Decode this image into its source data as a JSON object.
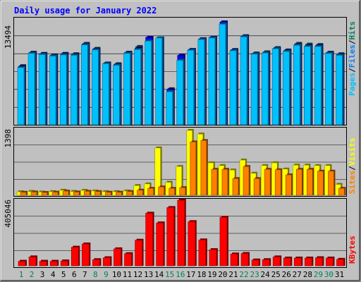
{
  "chart_data": [
    {
      "type": "bar",
      "title": "Daily usage for January 2022",
      "ylabel_parts": [
        {
          "text": "Pages",
          "color": "#00c0ff"
        },
        {
          "text": "Files",
          "color": "#0080ff"
        },
        {
          "text": "Hits",
          "color": "#00805f"
        }
      ],
      "y_max_label": "13494",
      "ylim": [
        0,
        13494
      ],
      "categories": [
        "1",
        "2",
        "3",
        "4",
        "5",
        "6",
        "7",
        "8",
        "9",
        "10",
        "11",
        "12",
        "13",
        "14",
        "15",
        "16",
        "17",
        "18",
        "19",
        "20",
        "21",
        "22",
        "23",
        "24",
        "25",
        "26",
        "27",
        "28",
        "29",
        "30",
        "31"
      ],
      "weekend_days": [
        "1",
        "2",
        "8",
        "9",
        "15",
        "16",
        "22",
        "23",
        "29",
        "30"
      ],
      "series": [
        {
          "name": "Hits",
          "color": "#00805f",
          "values": [
            7700,
            9450,
            9300,
            9100,
            9300,
            9250,
            10600,
            9950,
            8050,
            7950,
            9450,
            10200,
            11300,
            11300,
            4700,
            8950,
            9800,
            11200,
            11300,
            13400,
            9800,
            11600,
            9350,
            9500,
            10050,
            9750,
            10600,
            10500,
            10450,
            9450,
            9250
          ]
        },
        {
          "name": "Files",
          "color": "#0000ff",
          "values": [
            7600,
            9400,
            9250,
            9050,
            9250,
            9150,
            10500,
            9850,
            8000,
            7850,
            9400,
            10000,
            11400,
            11300,
            4600,
            9050,
            9800,
            11200,
            11400,
            13400,
            9750,
            11550,
            9250,
            9400,
            9950,
            9650,
            10450,
            10300,
            10300,
            9400,
            9150
          ]
        },
        {
          "name": "Pages",
          "color": "#00c0ff",
          "values": [
            7450,
            9300,
            9150,
            8950,
            9100,
            9050,
            10400,
            9750,
            7950,
            7750,
            9300,
            9800,
            10900,
            11300,
            4300,
            8400,
            9700,
            11100,
            11300,
            13100,
            9650,
            11450,
            9200,
            9350,
            9900,
            9550,
            10350,
            10200,
            10200,
            9300,
            9050
          ]
        }
      ]
    },
    {
      "type": "bar",
      "ylabel_parts": [
        {
          "text": "Sites",
          "color": "#ff8000"
        },
        {
          "text": "Visits",
          "color": "#ffff00"
        }
      ],
      "y_max_label": "1398",
      "ylim": [
        0,
        1398
      ],
      "categories": [
        "1",
        "2",
        "3",
        "4",
        "5",
        "6",
        "7",
        "8",
        "9",
        "10",
        "11",
        "12",
        "13",
        "14",
        "15",
        "16",
        "17",
        "18",
        "19",
        "20",
        "21",
        "22",
        "23",
        "24",
        "25",
        "26",
        "27",
        "28",
        "29",
        "30",
        "31"
      ],
      "series": [
        {
          "name": "Visits",
          "color": "#ffff00",
          "values": [
            75,
            82,
            70,
            78,
            108,
            82,
            105,
            92,
            78,
            78,
            92,
            210,
            245,
            1020,
            280,
            620,
            1398,
            1320,
            700,
            640,
            545,
            760,
            475,
            640,
            700,
            565,
            650,
            650,
            640,
            640,
            235
          ]
        },
        {
          "name": "Sites",
          "color": "#ff8000",
          "values": [
            64,
            70,
            60,
            66,
            90,
            70,
            85,
            80,
            65,
            65,
            80,
            110,
            150,
            180,
            150,
            165,
            1150,
            1180,
            560,
            560,
            360,
            620,
            360,
            560,
            550,
            440,
            560,
            560,
            520,
            520,
            150
          ]
        }
      ]
    },
    {
      "type": "bar",
      "ylabel_parts": [
        {
          "text": "KBytes",
          "color": "#ff0000"
        }
      ],
      "y_max_label": "405046",
      "ylim": [
        0,
        405046
      ],
      "categories": [
        "1",
        "2",
        "3",
        "4",
        "5",
        "6",
        "7",
        "8",
        "9",
        "10",
        "11",
        "12",
        "13",
        "14",
        "15",
        "16",
        "17",
        "18",
        "19",
        "20",
        "21",
        "22",
        "23",
        "24",
        "25",
        "26",
        "27",
        "28",
        "29",
        "30",
        "31"
      ],
      "series": [
        {
          "name": "KBytes",
          "color": "#ff0000",
          "values": [
            28000,
            55000,
            28000,
            28000,
            30000,
            115000,
            135000,
            38000,
            50000,
            105000,
            75000,
            158000,
            325000,
            265000,
            360000,
            405046,
            273000,
            160000,
            100000,
            300000,
            73000,
            76000,
            36000,
            38000,
            55000,
            48000,
            48000,
            48000,
            50000,
            48000,
            40000
          ]
        }
      ]
    }
  ]
}
